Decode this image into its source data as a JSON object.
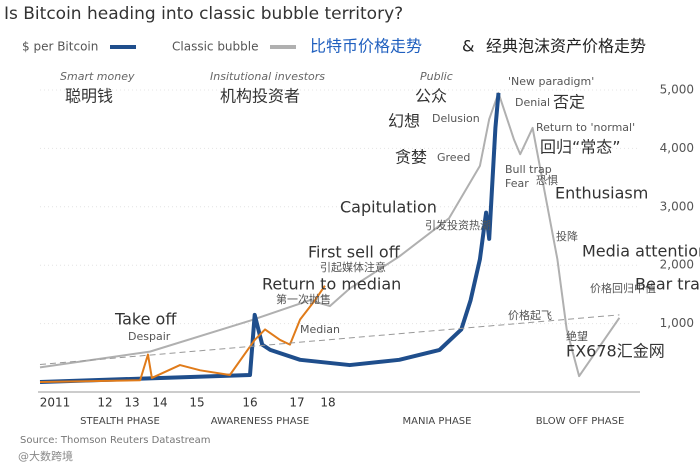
{
  "chart_data": {
    "type": "line",
    "title": "Is Bitcoin heading into classic bubble territory?",
    "legend_cn": [
      "比特币价格走势",
      "&",
      "经典泡沫资产价格走势"
    ],
    "ylim": [
      0,
      5000
    ],
    "yticks": [
      {
        "value": 1000,
        "label": "1,000"
      },
      {
        "value": 2000,
        "label": "2,000"
      },
      {
        "value": 3000,
        "label": "3,000"
      },
      {
        "value": 4000,
        "label": "4,000"
      },
      {
        "value": 5000,
        "label": "5,000"
      }
    ],
    "xlim": [
      2010.7,
      2027.4
    ],
    "xticks": [
      {
        "value": 2011,
        "label": "2011"
      },
      {
        "value": 2012,
        "label": "12"
      },
      {
        "value": 2013,
        "label": "13"
      },
      {
        "value": 2014,
        "label": "14"
      },
      {
        "value": 2015,
        "label": "15"
      },
      {
        "value": 2016,
        "label": "16"
      },
      {
        "value": 2017,
        "label": "17"
      },
      {
        "value": 2018,
        "label": "18"
      }
    ],
    "series": [
      {
        "name": "Classic bubble",
        "color": "#b0b0b0",
        "x": [
          2010.7,
          2013.64,
          2016,
          2017.42,
          2018.06,
          2018.7,
          2020.3,
          2021.9,
          2022.9,
          2023.2,
          2023.5,
          2024,
          2024.2,
          2024.6,
          2025.4,
          2025.7,
          2026.1,
          2027.4
        ],
        "values": [
          250,
          520,
          1050,
          1400,
          1300,
          1600,
          2150,
          2800,
          3700,
          4500,
          4950,
          4150,
          3900,
          4350,
          2100,
          900,
          100,
          1100
        ]
      },
      {
        "name": "$ per Bitcoin",
        "color": "#1f4e8c",
        "x": [
          2010.7,
          2016,
          2016.1,
          2016.26,
          2016.43,
          2017.1,
          2018.7,
          2020.3,
          2021.6,
          2022.3,
          2022.6,
          2022.9,
          2023.1,
          2023.2,
          2023.4,
          2023.5
        ],
        "values": [
          0,
          120,
          1150,
          640,
          550,
          380,
          290,
          380,
          550,
          900,
          1400,
          2100,
          2900,
          2450,
          4350,
          4950
        ]
      },
      {
        "color": "#e07b1a",
        "x": [
          2010.7,
          2013.29,
          2013.57,
          2013.71,
          2014.54,
          2015.06,
          2015.62,
          2016.1,
          2016.32,
          2016.64,
          2016.85,
          2017.1,
          2017.58,
          2017.9
        ],
        "values": [
          0,
          30,
          470,
          70,
          290,
          200,
          120,
          720,
          900,
          720,
          640,
          1070,
          1400,
          1650
        ]
      },
      {
        "color": "#999999",
        "dashed": true,
        "x": [
          2010.7,
          2027.4
        ],
        "values": [
          300,
          1150
        ]
      }
    ],
    "phases": [
      "STEALTH PHASE",
      "AWARENESS PHASE",
      "MANIA PHASE",
      "BLOW OFF PHASE"
    ],
    "annotations": [
      "Smart money",
      "聪明钱",
      "Insitutional investors",
      "机构投资者",
      "Public",
      "公众",
      "'New paradigm'",
      "Denial",
      "否定",
      "Delusion",
      "幻想",
      "Greed",
      "贪婪",
      "Return to 'normal'",
      "回归“常态”",
      "Bull trap",
      "Fear",
      "恐惧",
      "Enthusiasm",
      "引发投资热潮",
      "Capitulation",
      "投降",
      "Media attention",
      "引起媒体注意",
      "First sell off",
      "第一次抛售",
      "Return to median",
      "价格回归中值",
      "Bear trap",
      "Median",
      "价格起飞",
      "Take off",
      "Despair",
      "绝望",
      "FX678汇金网"
    ],
    "source": "Source: Thomson Reuters Datastream",
    "watermark": "@大数跨境"
  }
}
